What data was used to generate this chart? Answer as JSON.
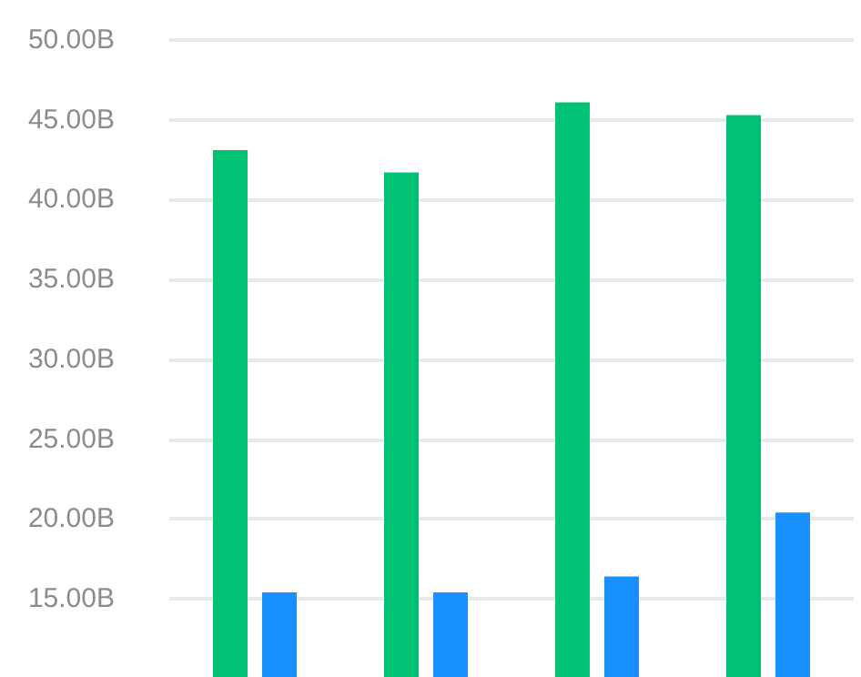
{
  "chart_data": {
    "type": "bar",
    "categories": [
      null,
      null,
      null,
      null
    ],
    "series": [
      {
        "color": "#00c274",
        "values": [
          43.1,
          41.7,
          46.1,
          45.3
        ]
      },
      {
        "color": "#1890ff",
        "values": [
          15.4,
          15.4,
          16.4,
          20.4
        ]
      }
    ],
    "ylim": [
      10.1,
      50
    ],
    "yticks": [
      {
        "value": 15,
        "label": "15.00B"
      },
      {
        "value": 20,
        "label": "20.00B"
      },
      {
        "value": 25,
        "label": "25.00B"
      },
      {
        "value": 30,
        "label": "30.00B"
      },
      {
        "value": 35,
        "label": "35.00B"
      },
      {
        "value": 40,
        "label": "40.00B"
      },
      {
        "value": 45,
        "label": "45.00B"
      },
      {
        "value": 50,
        "label": "50.00B"
      }
    ],
    "grid": "y",
    "tick_labels": "y"
  }
}
